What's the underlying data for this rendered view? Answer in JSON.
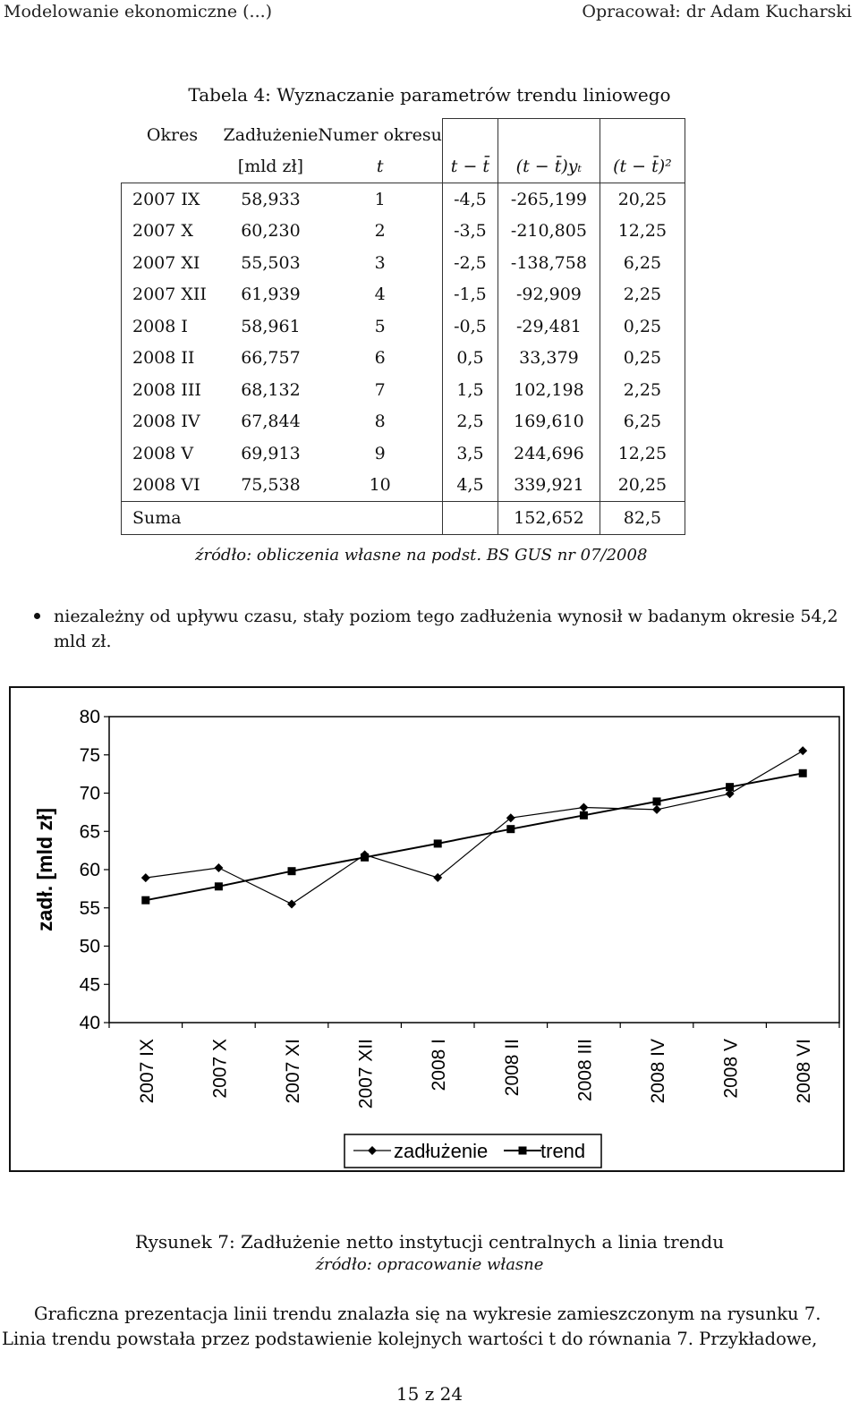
{
  "header": {
    "left": "Modelowanie ekonomiczne (...)",
    "right": "Opracował: dr Adam Kucharski"
  },
  "table": {
    "caption": "Tabela 4: Wyznaczanie parametrów trendu liniowego",
    "head1": [
      "Okres",
      "Zadłużenie",
      "Numer okresu"
    ],
    "head2": [
      "[mld zł]",
      "t",
      "t − t̄",
      "(t − t̄)yₜ",
      "(t − t̄)²"
    ],
    "rows": [
      [
        "2007 IX",
        "58,933",
        "1",
        "-4,5",
        "-265,199",
        "20,25"
      ],
      [
        "2007 X",
        "60,230",
        "2",
        "-3,5",
        "-210,805",
        "12,25"
      ],
      [
        "2007 XI",
        "55,503",
        "3",
        "-2,5",
        "-138,758",
        "6,25"
      ],
      [
        "2007 XII",
        "61,939",
        "4",
        "-1,5",
        "-92,909",
        "2,25"
      ],
      [
        "2008 I",
        "58,961",
        "5",
        "-0,5",
        "-29,481",
        "0,25"
      ],
      [
        "2008 II",
        "66,757",
        "6",
        "0,5",
        "33,379",
        "0,25"
      ],
      [
        "2008 III",
        "68,132",
        "7",
        "1,5",
        "102,198",
        "2,25"
      ],
      [
        "2008 IV",
        "67,844",
        "8",
        "2,5",
        "169,610",
        "6,25"
      ],
      [
        "2008 V",
        "69,913",
        "9",
        "3,5",
        "244,696",
        "12,25"
      ],
      [
        "2008 VI",
        "75,538",
        "10",
        "4,5",
        "339,921",
        "20,25"
      ]
    ],
    "sum": [
      "Suma",
      "152,652",
      "82,5"
    ],
    "source": "źródło: obliczenia własne na podst. BS GUS nr 07/2008"
  },
  "bullet": {
    "line1": "niezależny od upływu czasu, stały poziom tego zadłużenia wynosił w badanym okresie 54,2",
    "line2": "mld zł."
  },
  "chart_data": {
    "type": "line",
    "categories": [
      "2007 IX",
      "2007 X",
      "2007 XI",
      "2007 XII",
      "2008 I",
      "2008 II",
      "2008 III",
      "2008 IV",
      "2008 V",
      "2008 VI"
    ],
    "series": [
      {
        "name": "zadłużenie",
        "values": [
          58.933,
          60.23,
          55.503,
          61.939,
          58.961,
          66.757,
          68.132,
          67.844,
          69.913,
          75.538
        ],
        "marker": "diamond"
      },
      {
        "name": "trend",
        "values": [
          56.0,
          57.8,
          59.8,
          61.6,
          63.4,
          65.3,
          67.1,
          68.9,
          70.8,
          72.6
        ],
        "marker": "square"
      }
    ],
    "ylabel": "zadł. [mld zł]",
    "yticks": [
      "80",
      "75",
      "70",
      "65",
      "60",
      "55",
      "50",
      "45",
      "40"
    ],
    "ylim": [
      40,
      80
    ],
    "legend_position": "bottom",
    "grid": false,
    "colors": {
      "line": "#000000",
      "frame": "#000000"
    }
  },
  "figure": {
    "caption": "Rysunek 7: Zadłużenie netto instytucji centralnych a linia trendu",
    "source": "źródło: opracowanie własne"
  },
  "paragraph": {
    "line1": "Graficzna prezentacja linii trendu znalazła się na wykresie zamieszczonym na rysunku 7.",
    "line2": "Linia trendu powstała przez podstawienie kolejnych wartości t do równania 7. Przykładowe,"
  },
  "footer": {
    "page": "15 z 24"
  }
}
